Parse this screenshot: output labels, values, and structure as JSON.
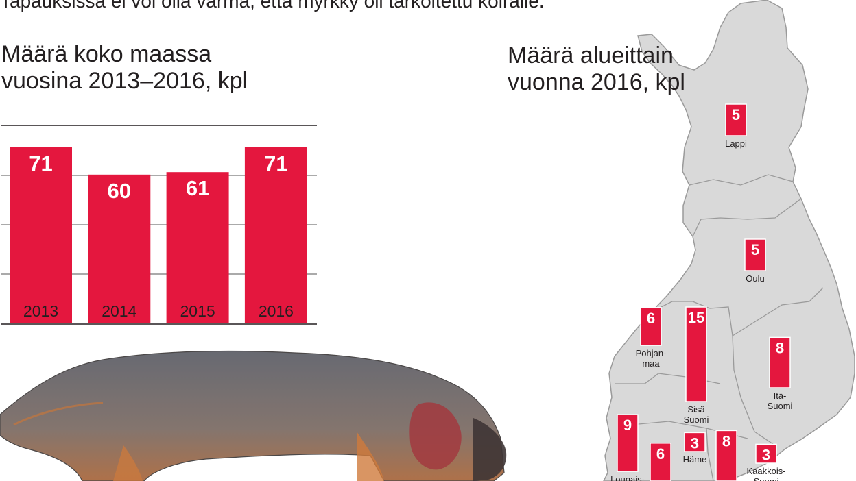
{
  "intro_text": "Tapauksissa ei voi olla varma, että myrkky oli tarkoitettu koiralle.",
  "colors": {
    "bar": "#e4173e",
    "map_fill": "#d9d9d9",
    "map_stroke": "#9a9a9a",
    "rule": "#231f20"
  },
  "chart_data": [
    {
      "type": "bar",
      "title": "Määrä koko maassa vuosina 2013–2016, kpl",
      "categories": [
        "2013",
        "2014",
        "2015",
        "2016"
      ],
      "values": [
        71,
        60,
        61,
        71
      ],
      "xlabel": "",
      "ylabel": "",
      "ylim": [
        0,
        71
      ],
      "grid": true
    },
    {
      "type": "bar",
      "title": "Määrä alueittain vuonna 2016, kpl",
      "regions": [
        {
          "name": "Lappi",
          "value": 5
        },
        {
          "name": "Oulu",
          "value": 5
        },
        {
          "name": "Pohjan-\nmaa",
          "value": 6
        },
        {
          "name": "Sisä\nSuomi",
          "value": 15
        },
        {
          "name": "Itä-\nSuomi",
          "value": 8
        },
        {
          "name": "Häme",
          "value": 3
        },
        {
          "name": "Lounais-",
          "value": 9
        },
        {
          "name": "",
          "value": 6
        },
        {
          "name": "",
          "value": 8
        },
        {
          "name": "Kaakkois-\nSuomi",
          "value": 3
        }
      ]
    }
  ]
}
